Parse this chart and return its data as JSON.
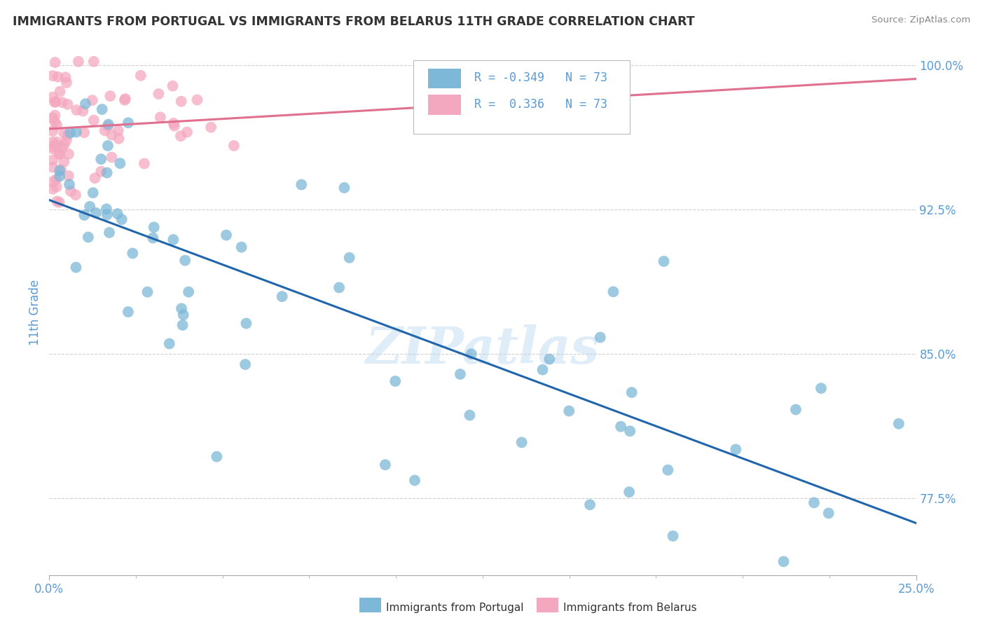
{
  "title": "IMMIGRANTS FROM PORTUGAL VS IMMIGRANTS FROM BELARUS 11TH GRADE CORRELATION CHART",
  "source": "Source: ZipAtlas.com",
  "xlabel_blue": "Immigrants from Portugal",
  "xlabel_pink": "Immigrants from Belarus",
  "ylabel": "11th Grade",
  "r_blue": -0.349,
  "r_pink": 0.336,
  "n_blue": 73,
  "n_pink": 73,
  "xlim": [
    0.0,
    0.25
  ],
  "ylim": [
    0.735,
    1.008
  ],
  "yticks": [
    0.775,
    0.85,
    0.925,
    1.0
  ],
  "ytick_labels": [
    "77.5%",
    "85.0%",
    "92.5%",
    "100.0%"
  ],
  "xticks": [
    0.0,
    0.25
  ],
  "xtick_labels": [
    "0.0%",
    "25.0%"
  ],
  "color_blue": "#7db8d8",
  "color_pink": "#f4a8c0",
  "color_blue_line": "#2166ac",
  "color_pink_line": "#e07090",
  "background_color": "#ffffff",
  "grid_color": "#d0d0d0",
  "title_color": "#333333",
  "axis_label_color": "#5b9bd5",
  "watermark": "ZIPatlas",
  "blue_line_x0": 0.0,
  "blue_line_y0": 0.93,
  "blue_line_x1": 0.25,
  "blue_line_y1": 0.762,
  "pink_line_x0": 0.0,
  "pink_line_y0": 0.967,
  "pink_line_x1": 0.25,
  "pink_line_y1": 0.993
}
